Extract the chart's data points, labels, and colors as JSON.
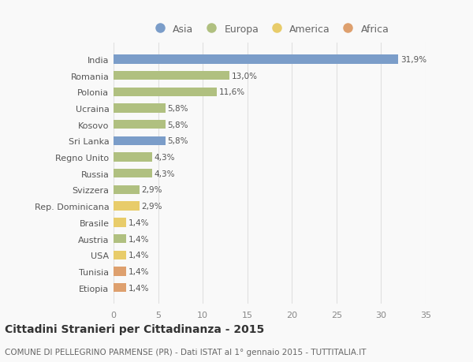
{
  "countries": [
    "India",
    "Romania",
    "Polonia",
    "Ucraina",
    "Kosovo",
    "Sri Lanka",
    "Regno Unito",
    "Russia",
    "Svizzera",
    "Rep. Dominicana",
    "Brasile",
    "Austria",
    "USA",
    "Tunisia",
    "Etiopia"
  ],
  "values": [
    31.9,
    13.0,
    11.6,
    5.8,
    5.8,
    5.8,
    4.3,
    4.3,
    2.9,
    2.9,
    1.4,
    1.4,
    1.4,
    1.4,
    1.4
  ],
  "labels": [
    "31,9%",
    "13,0%",
    "11,6%",
    "5,8%",
    "5,8%",
    "5,8%",
    "4,3%",
    "4,3%",
    "2,9%",
    "2,9%",
    "1,4%",
    "1,4%",
    "1,4%",
    "1,4%",
    "1,4%"
  ],
  "continents": [
    "Asia",
    "Europa",
    "Europa",
    "Europa",
    "Europa",
    "Asia",
    "Europa",
    "Europa",
    "Europa",
    "America",
    "America",
    "Europa",
    "America",
    "Africa",
    "Africa"
  ],
  "continent_colors": {
    "Asia": "#7b9dc9",
    "Europa": "#b0c080",
    "America": "#e8cc6a",
    "Africa": "#dea06e"
  },
  "legend_order": [
    "Asia",
    "Europa",
    "America",
    "Africa"
  ],
  "xlim": [
    0,
    35
  ],
  "xticks": [
    0,
    5,
    10,
    15,
    20,
    25,
    30,
    35
  ],
  "title": "Cittadini Stranieri per Cittadinanza - 2015",
  "subtitle": "COMUNE DI PELLEGRINO PARMENSE (PR) - Dati ISTAT al 1° gennaio 2015 - TUTTITALIA.IT",
  "background_color": "#f9f9f9",
  "grid_color": "#e0e0e0",
  "bar_height": 0.55,
  "title_fontsize": 10,
  "subtitle_fontsize": 7.5,
  "label_fontsize": 7.5,
  "tick_fontsize": 8,
  "legend_fontsize": 9
}
